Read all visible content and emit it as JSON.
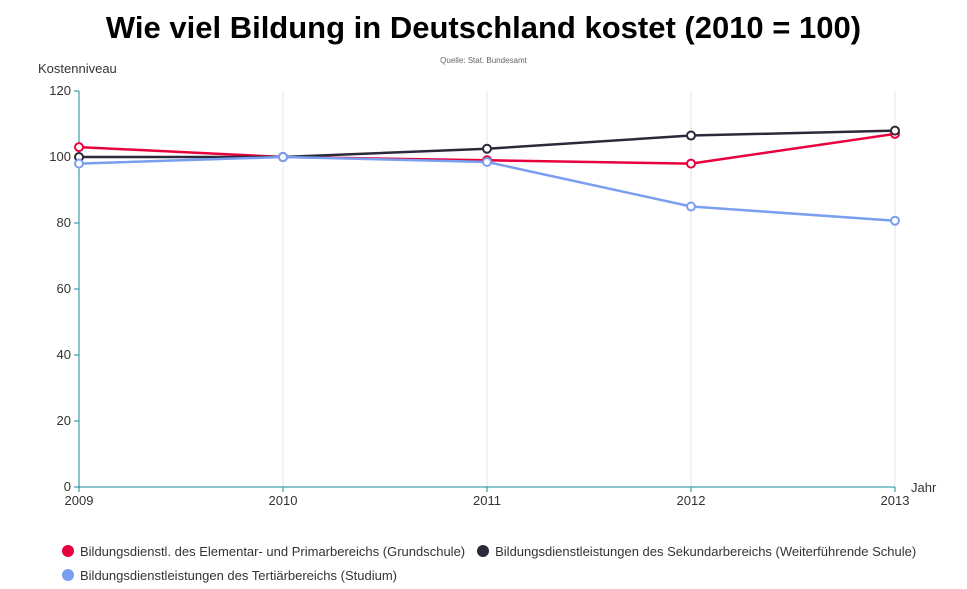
{
  "chart_data": {
    "type": "line",
    "title": "Wie viel Bildung in Deutschland kostet (2010 = 100)",
    "subtitle": "Quelle: Stat. Bundesamt",
    "xlabel": "Jahr",
    "ylabel": "Kostenniveau",
    "x": [
      "2009",
      "2010",
      "2011",
      "2012",
      "2013"
    ],
    "ylim": [
      0,
      120
    ],
    "yticks": [
      0,
      20,
      40,
      60,
      80,
      100,
      120
    ],
    "grid": "vertical",
    "legend_position": "bottom",
    "series": [
      {
        "name": "Bildungsdienstl. des Elementar- und Primarbereichs (Grundschule)",
        "color": "#e8003c",
        "values": [
          103,
          100,
          99,
          98,
          107
        ]
      },
      {
        "name": "Bildungsdienstleistungen des Sekundarbereichs (Weiterführende Schule)",
        "color": "#2a2a3a",
        "values": [
          100,
          100,
          102.5,
          106.5,
          108
        ]
      },
      {
        "name": "Bildungsdienstleistungen des Tertiärbereichs (Studium)",
        "color": "#7b9ff0",
        "values": [
          98,
          100,
          98.5,
          85,
          80.7
        ]
      }
    ]
  }
}
